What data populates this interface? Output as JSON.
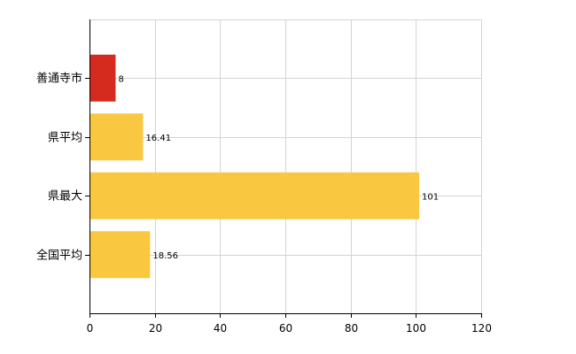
{
  "chart_data": {
    "type": "bar",
    "orientation": "horizontal",
    "categories": [
      "善通寺市",
      "県平均",
      "県最大",
      "全国平均"
    ],
    "values": [
      8,
      16.41,
      101,
      18.56
    ],
    "data_labels": [
      "8",
      "16.41",
      "101",
      "18.56"
    ],
    "bar_colors": [
      "#d52b1e",
      "#f9c840",
      "#f9c840",
      "#f9c840"
    ],
    "xlim": [
      0,
      120
    ],
    "x_ticks": [
      0,
      20,
      40,
      60,
      80,
      100,
      120
    ],
    "x_tick_labels": [
      "0",
      "20",
      "40",
      "60",
      "80",
      "100",
      "120"
    ],
    "title": "",
    "xlabel": "",
    "ylabel": "",
    "grid": true,
    "legend": "none"
  }
}
